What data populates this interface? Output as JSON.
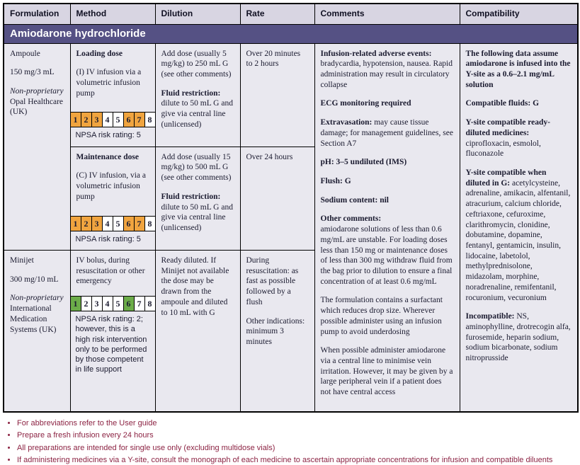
{
  "colors": {
    "header_bg": "#D8D5E2",
    "drug_bg": "#555184",
    "body_bg": "#E9E8EF",
    "text": "#1B1B30",
    "footnote": "#8C2343",
    "amber": "#F0A43F",
    "green": "#6CAC49",
    "off": "#FFFFFF"
  },
  "header": {
    "columns": [
      "Formulation",
      "Method",
      "Dilution",
      "Rate",
      "Comments",
      "Compatibility"
    ]
  },
  "drug": {
    "name": "Amiodarone hydrochloride"
  },
  "ampoule": {
    "formulation": {
      "form": "Ampoule",
      "strength": "150 mg/3 mL",
      "licence": "Non-proprietary",
      "supplier": "Opal Healthcare (UK)"
    },
    "loading": {
      "title": "Loading dose",
      "method": "(I) IV infusion via a volumetric infusion pump",
      "npsa_cells": [
        {
          "n": "1",
          "state": "amber"
        },
        {
          "n": "2",
          "state": "amber"
        },
        {
          "n": "3",
          "state": "amber"
        },
        {
          "n": "4",
          "state": "off"
        },
        {
          "n": "5",
          "state": "off"
        },
        {
          "n": "6",
          "state": "amber"
        },
        {
          "n": "7",
          "state": "amber"
        },
        {
          "n": "8",
          "state": "off"
        }
      ],
      "npsa_rating": "NPSA risk rating: 5",
      "dilution_main": "Add dose (usually 5 mg/kg) to 250 mL G (see other comments)",
      "dilution_restriction_label": "Fluid restriction:",
      "dilution_restriction": "dilute to 50 mL G and give via central line (unlicensed)",
      "rate": "Over 20 minutes to 2 hours"
    },
    "maintenance": {
      "title": "Maintenance dose",
      "method": "(C) IV infusion, via a volumetric infusion pump",
      "npsa_cells": [
        {
          "n": "1",
          "state": "amber"
        },
        {
          "n": "2",
          "state": "amber"
        },
        {
          "n": "3",
          "state": "amber"
        },
        {
          "n": "4",
          "state": "off"
        },
        {
          "n": "5",
          "state": "off"
        },
        {
          "n": "6",
          "state": "amber"
        },
        {
          "n": "7",
          "state": "amber"
        },
        {
          "n": "8",
          "state": "off"
        }
      ],
      "npsa_rating": "NPSA risk rating: 5",
      "dilution_main": "Add dose (usually 15 mg/kg) to 500 mL G (see other comments)",
      "dilution_restriction_label": "Fluid restriction:",
      "dilution_restriction": "dilute to 50 mL G and give via central line (unlicensed)",
      "rate": "Over 24 hours"
    }
  },
  "minijet": {
    "formulation": {
      "form": "Minijet",
      "strength": "300 mg/10 mL",
      "licence": "Non-proprietary",
      "supplier": "International Medication Systems (UK)"
    },
    "bolus": {
      "method": "IV bolus, during resuscitation or other emergency",
      "npsa_cells": [
        {
          "n": "1",
          "state": "green"
        },
        {
          "n": "2",
          "state": "off"
        },
        {
          "n": "3",
          "state": "off"
        },
        {
          "n": "4",
          "state": "off"
        },
        {
          "n": "5",
          "state": "off"
        },
        {
          "n": "6",
          "state": "green"
        },
        {
          "n": "7",
          "state": "off"
        },
        {
          "n": "8",
          "state": "off"
        }
      ],
      "npsa_rating": "NPSA risk rating: 2; however, this is a high risk intervention only to be performed by those competent in life support",
      "dilution": "Ready diluted. If Minijet not available the dose may be drawn from the ampoule and diluted to 10 mL with G",
      "rate_resus": "During resuscitation: as fast as possible followed by a flush",
      "rate_other": "Other indications: minimum 3 minutes"
    }
  },
  "comments": {
    "paragraphs": [
      {
        "label": "Infusion-related adverse events:",
        "text": "bradycardia, hypotension, nausea. Rapid administration may result in circulatory collapse"
      },
      {
        "label": "ECG monitoring required",
        "text": ""
      },
      {
        "label": "Extravasation:",
        "text": "may cause tissue damage; for management guidelines, see Section A7"
      },
      {
        "label": "pH: 3–5 undiluted (IMS)",
        "text": ""
      },
      {
        "label": "Flush: G",
        "text": ""
      },
      {
        "label": "Sodium content: nil",
        "text": ""
      },
      {
        "label": "Other comments:",
        "text": "amiodarone solutions of less than 0.6 mg/mL are unstable. For loading doses less than 150 mg or maintenance doses of less than 300 mg withdraw fluid from the bag prior to dilution to ensure a final concentration of at least 0.6 mg/mL"
      },
      {
        "label": "",
        "text": "The formulation contains a surfactant which reduces drop size. Wherever possible administer using an infusion pump to avoid underdosing"
      },
      {
        "label": "",
        "text": "When possible administer amiodarone via a central line to minimise vein irritation. However, it may be given by a large peripheral vein if a patient does not have central access"
      }
    ]
  },
  "compatibility": {
    "paragraphs": [
      {
        "label": "The following data assume amiodarone is infused into the Y-site as a 0.6–2.1 mg/mL solution",
        "text": ""
      },
      {
        "label": "Compatible fluids: G",
        "text": ""
      },
      {
        "label": "Y-site compatible ready-diluted medicines:",
        "text": "ciprofloxacin, esmolol, fluconazole"
      },
      {
        "label": "Y-site compatible when diluted in G:",
        "text": "acetylcysteine, adrenaline, amikacin, alfentanil, atracurium, calcium chloride, ceftriaxone, cefuroxime, clarithromycin, clonidine, dobutamine, dopamine, fentanyl, gentamicin, insulin, lidocaine, labetolol, methylprednisolone, midazolam, morphine, noradrenaline, remifentanil, rocuronium, vecuronium"
      },
      {
        "label": "Incompatible:",
        "text": "NS, aminophylline, drotrecogin alfa, furosemide, heparin sodium, sodium bicarbonate, sodium nitroprusside"
      }
    ]
  },
  "footnotes": [
    "For abbreviations refer to the User guide",
    "Prepare a fresh infusion every 24 hours",
    "All preparations are intended for single use only (excluding multidose vials)",
    "If administering medicines via a Y-site, consult the monograph of each medicine to ascertain appropriate concentrations for infusion and compatible diluents"
  ]
}
